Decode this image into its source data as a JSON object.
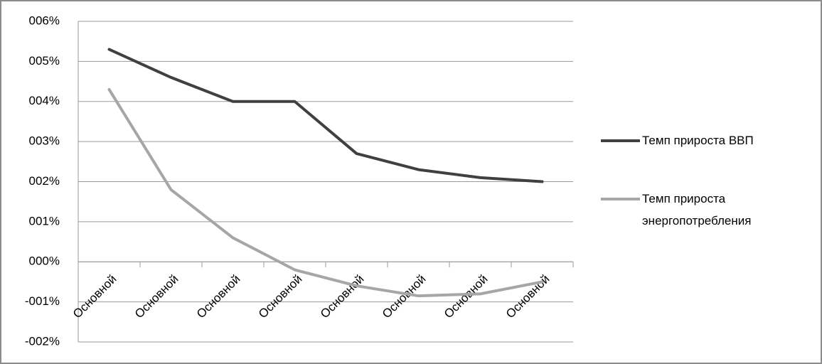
{
  "chart_data": {
    "type": "line",
    "categories": [
      "Основной",
      "Основной",
      "Основной",
      "Основной",
      "Основной",
      "Основной",
      "Основной",
      "Основной"
    ],
    "series": [
      {
        "name": "Темп прироста ВВП",
        "color": "#404040",
        "values": [
          5.3,
          4.6,
          4.0,
          4.0,
          2.7,
          2.3,
          2.1,
          2.0
        ]
      },
      {
        "name": "Темп прироста энергопотребления",
        "color": "#a6a6a6",
        "values": [
          4.3,
          1.8,
          0.6,
          -0.2,
          -0.6,
          -0.85,
          -0.8,
          -0.5
        ]
      }
    ],
    "ylim": [
      -2,
      6
    ],
    "yticks": [
      {
        "value": -2,
        "label": "-002%"
      },
      {
        "value": -1,
        "label": "-001%"
      },
      {
        "value": 0,
        "label": "000%"
      },
      {
        "value": 1,
        "label": "001%"
      },
      {
        "value": 2,
        "label": "002%"
      },
      {
        "value": 3,
        "label": "003%"
      },
      {
        "value": 4,
        "label": "004%"
      },
      {
        "value": 5,
        "label": "005%"
      },
      {
        "value": 6,
        "label": "006%"
      }
    ],
    "grid": true,
    "legend": "right"
  }
}
